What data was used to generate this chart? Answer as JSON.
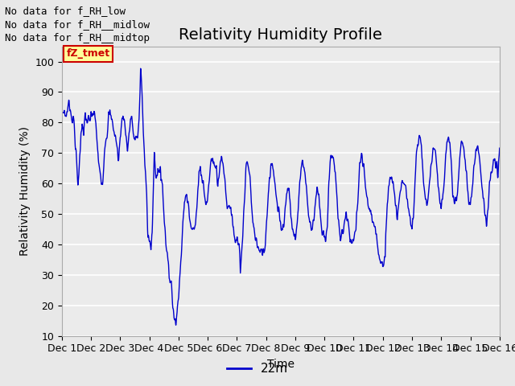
{
  "title": "Relativity Humidity Profile",
  "ylabel": "Relativity Humidity (%)",
  "xlabel": "Time",
  "ylim": [
    10,
    105
  ],
  "yticks": [
    10,
    20,
    30,
    40,
    50,
    60,
    70,
    80,
    90,
    100
  ],
  "line_color": "#0000cc",
  "line_label": "22m",
  "no_data_texts": [
    "No data for f_RH_low",
    "No data for f͟RH͟_midlow",
    "No data for f͟RH͟_midtop"
  ],
  "legend_tmet_label": "fZ_tmet",
  "fig_facecolor": "#e8e8e8",
  "ax_facecolor": "#ebebeb",
  "grid_color": "#ffffff",
  "spine_color": "#aaaaaa",
  "xtick_labels": [
    "Dec 1",
    "Dec 2",
    "Dec 3",
    "Dec 4",
    "Dec 5",
    "Dec 6",
    "Dec 7",
    "Dec 8",
    "Dec 9",
    "Dec 10",
    "Dec 11",
    "Dec 12",
    "Dec 13",
    "Dec 14",
    "Dec 15",
    "Dec 16"
  ],
  "title_fontsize": 14,
  "axis_fontsize": 10,
  "tick_fontsize": 9,
  "no_data_fontsize": 9,
  "legend_fontsize": 11
}
